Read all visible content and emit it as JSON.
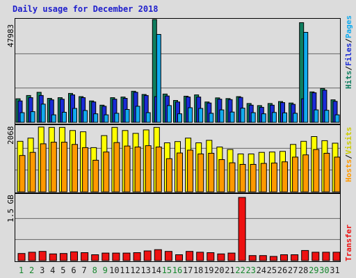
{
  "title": "Daily usage for December 2018",
  "colors": {
    "hits": "#0f7e5f",
    "files": "#1a2bd6",
    "pages": "#11aaee",
    "visits": "#ffff00",
    "hosts": "#ff9900",
    "transfer": "#ee1111",
    "weekday": "#1e1e1e",
    "weekend": "#17882e"
  },
  "chart_data": [
    {
      "type": "bar",
      "panel": "hits-files-pages",
      "ymax_label": "47983",
      "right_label": {
        "hits": "Hits",
        "files": "Files",
        "pages": "Pages"
      },
      "ylim": [
        0,
        47983
      ],
      "categories": [
        "1",
        "2",
        "3",
        "4",
        "5",
        "6",
        "7",
        "8",
        "9",
        "10",
        "11",
        "12",
        "13",
        "14",
        "15",
        "16",
        "17",
        "18",
        "19",
        "20",
        "21",
        "22",
        "23",
        "24",
        "25",
        "26",
        "27",
        "28",
        "29",
        "30",
        "31"
      ],
      "series": [
        {
          "name": "Hits",
          "values": [
            11000,
            12500,
            14000,
            11200,
            11500,
            13500,
            12000,
            10000,
            8000,
            11500,
            11800,
            14500,
            13000,
            47983,
            13200,
            10200,
            12200,
            12800,
            9500,
            11400,
            11100,
            12000,
            8800,
            7800,
            8800,
            9700,
            9000,
            46500,
            14200,
            15800,
            10500
          ]
        },
        {
          "name": "Files",
          "values": [
            10000,
            11500,
            12500,
            10500,
            10800,
            12800,
            11500,
            9500,
            7500,
            10800,
            11200,
            14000,
            12500,
            12000,
            12300,
            9500,
            11800,
            11800,
            9000,
            10800,
            10600,
            11600,
            8000,
            7000,
            8000,
            9200,
            8400,
            11000,
            13800,
            15000,
            9800
          ]
        },
        {
          "name": "Pages",
          "values": [
            4500,
            5000,
            8500,
            3500,
            4700,
            6500,
            5500,
            4000,
            3500,
            4200,
            6000,
            7500,
            4500,
            41000,
            7800,
            4000,
            6800,
            6500,
            4200,
            5800,
            4800,
            6600,
            4500,
            4000,
            4600,
            4400,
            4200,
            42000,
            5800,
            5600,
            3500
          ]
        }
      ]
    },
    {
      "type": "bar",
      "panel": "visits-hosts",
      "ymax_label": "2068",
      "right_label": {
        "hosts": "Hosts",
        "visits": "Visits"
      },
      "ylim": [
        0,
        2068
      ],
      "categories": [
        "1",
        "2",
        "3",
        "4",
        "5",
        "6",
        "7",
        "8",
        "9",
        "10",
        "11",
        "12",
        "13",
        "14",
        "15",
        "16",
        "17",
        "18",
        "19",
        "20",
        "21",
        "22",
        "23",
        "24",
        "25",
        "26",
        "27",
        "28",
        "29",
        "30",
        "31"
      ],
      "series": [
        {
          "name": "Visits",
          "values": [
            1600,
            1700,
            2050,
            2040,
            2040,
            1940,
            1900,
            1400,
            1780,
            2040,
            1940,
            1850,
            1960,
            2040,
            1550,
            1590,
            1700,
            1550,
            1630,
            1420,
            1340,
            1200,
            1200,
            1250,
            1260,
            1280,
            1500,
            1600,
            1750,
            1620,
            1540
          ]
        },
        {
          "name": "Hosts",
          "values": [
            1150,
            1250,
            1520,
            1570,
            1570,
            1500,
            1400,
            1000,
            1260,
            1560,
            1450,
            1420,
            1460,
            1420,
            1050,
            1230,
            1320,
            1200,
            1220,
            1020,
            920,
            870,
            870,
            900,
            910,
            950,
            1100,
            1170,
            1340,
            1220,
            1100
          ]
        }
      ]
    },
    {
      "type": "bar",
      "panel": "transfer",
      "ymax_label": "1.5 GB",
      "right_label": {
        "transfer": "Transfer"
      },
      "ylim": [
        0,
        1.5
      ],
      "categories": [
        "1",
        "2",
        "3",
        "4",
        "5",
        "6",
        "7",
        "8",
        "9",
        "10",
        "11",
        "12",
        "13",
        "14",
        "15",
        "16",
        "17",
        "18",
        "19",
        "20",
        "21",
        "22",
        "23",
        "24",
        "25",
        "26",
        "27",
        "28",
        "29",
        "30",
        "31"
      ],
      "series": [
        {
          "name": "Transfer",
          "values": [
            0.17,
            0.2,
            0.22,
            0.16,
            0.17,
            0.21,
            0.19,
            0.14,
            0.18,
            0.18,
            0.18,
            0.19,
            0.23,
            0.26,
            0.22,
            0.14,
            0.22,
            0.2,
            0.19,
            0.16,
            0.18,
            1.5,
            0.12,
            0.12,
            0.1,
            0.14,
            0.14,
            0.24,
            0.2,
            0.2,
            0.2
          ]
        }
      ]
    }
  ],
  "days": [
    "1",
    "2",
    "3",
    "4",
    "5",
    "6",
    "7",
    "8",
    "9",
    "10",
    "11",
    "12",
    "13",
    "14",
    "15",
    "16",
    "17",
    "18",
    "19",
    "20",
    "21",
    "22",
    "23",
    "24",
    "25",
    "26",
    "27",
    "28",
    "29",
    "30",
    "31"
  ],
  "weekend_days": [
    "1",
    "2",
    "8",
    "9",
    "15",
    "16",
    "22",
    "23",
    "29",
    "30"
  ]
}
